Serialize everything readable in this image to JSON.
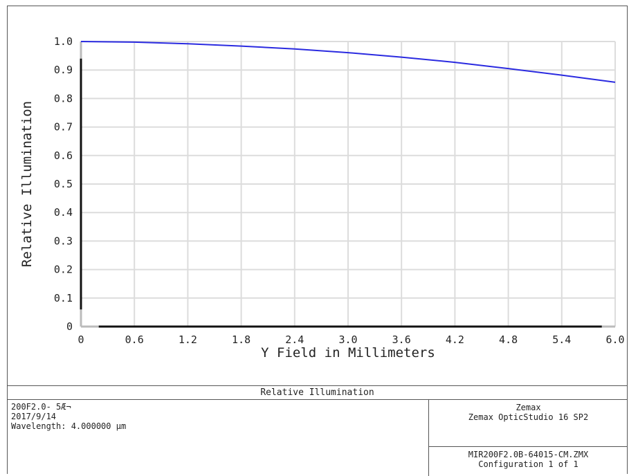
{
  "chart_data": {
    "type": "line",
    "xlabel": "Y Field in Millimeters",
    "ylabel": "Relative Illumination",
    "xlim": [
      0,
      6.0
    ],
    "ylim": [
      0,
      1.0
    ],
    "x_ticks": [
      "0",
      "0.6",
      "1.2",
      "1.8",
      "2.4",
      "3.0",
      "3.6",
      "4.2",
      "4.8",
      "5.4",
      "6.0"
    ],
    "y_ticks": [
      "0",
      "0.1",
      "0.2",
      "0.3",
      "0.4",
      "0.5",
      "0.6",
      "0.7",
      "0.8",
      "0.9",
      "1.0"
    ],
    "grid": true,
    "line_color": "#2a2ae0",
    "series": [
      {
        "x": [
          0,
          0.6,
          1.2,
          1.8,
          2.4,
          3.0,
          3.6,
          4.2,
          4.8,
          5.4,
          6.0
        ],
        "values": [
          1.0,
          0.998,
          0.992,
          0.984,
          0.974,
          0.961,
          0.945,
          0.927,
          0.905,
          0.882,
          0.857
        ]
      }
    ]
  },
  "footer": {
    "title": "Relative Illumination",
    "left_lines": [
      "200F2.0- 5Æ¬",
      "2017/9/14",
      "Wavelength: 4.000000 µm"
    ],
    "right_top": [
      "Zemax",
      "Zemax OpticStudio 16 SP2"
    ],
    "right_bottom": [
      "MIR200F2.0B-64015-CM.ZMX",
      "Configuration 1 of 1"
    ]
  }
}
